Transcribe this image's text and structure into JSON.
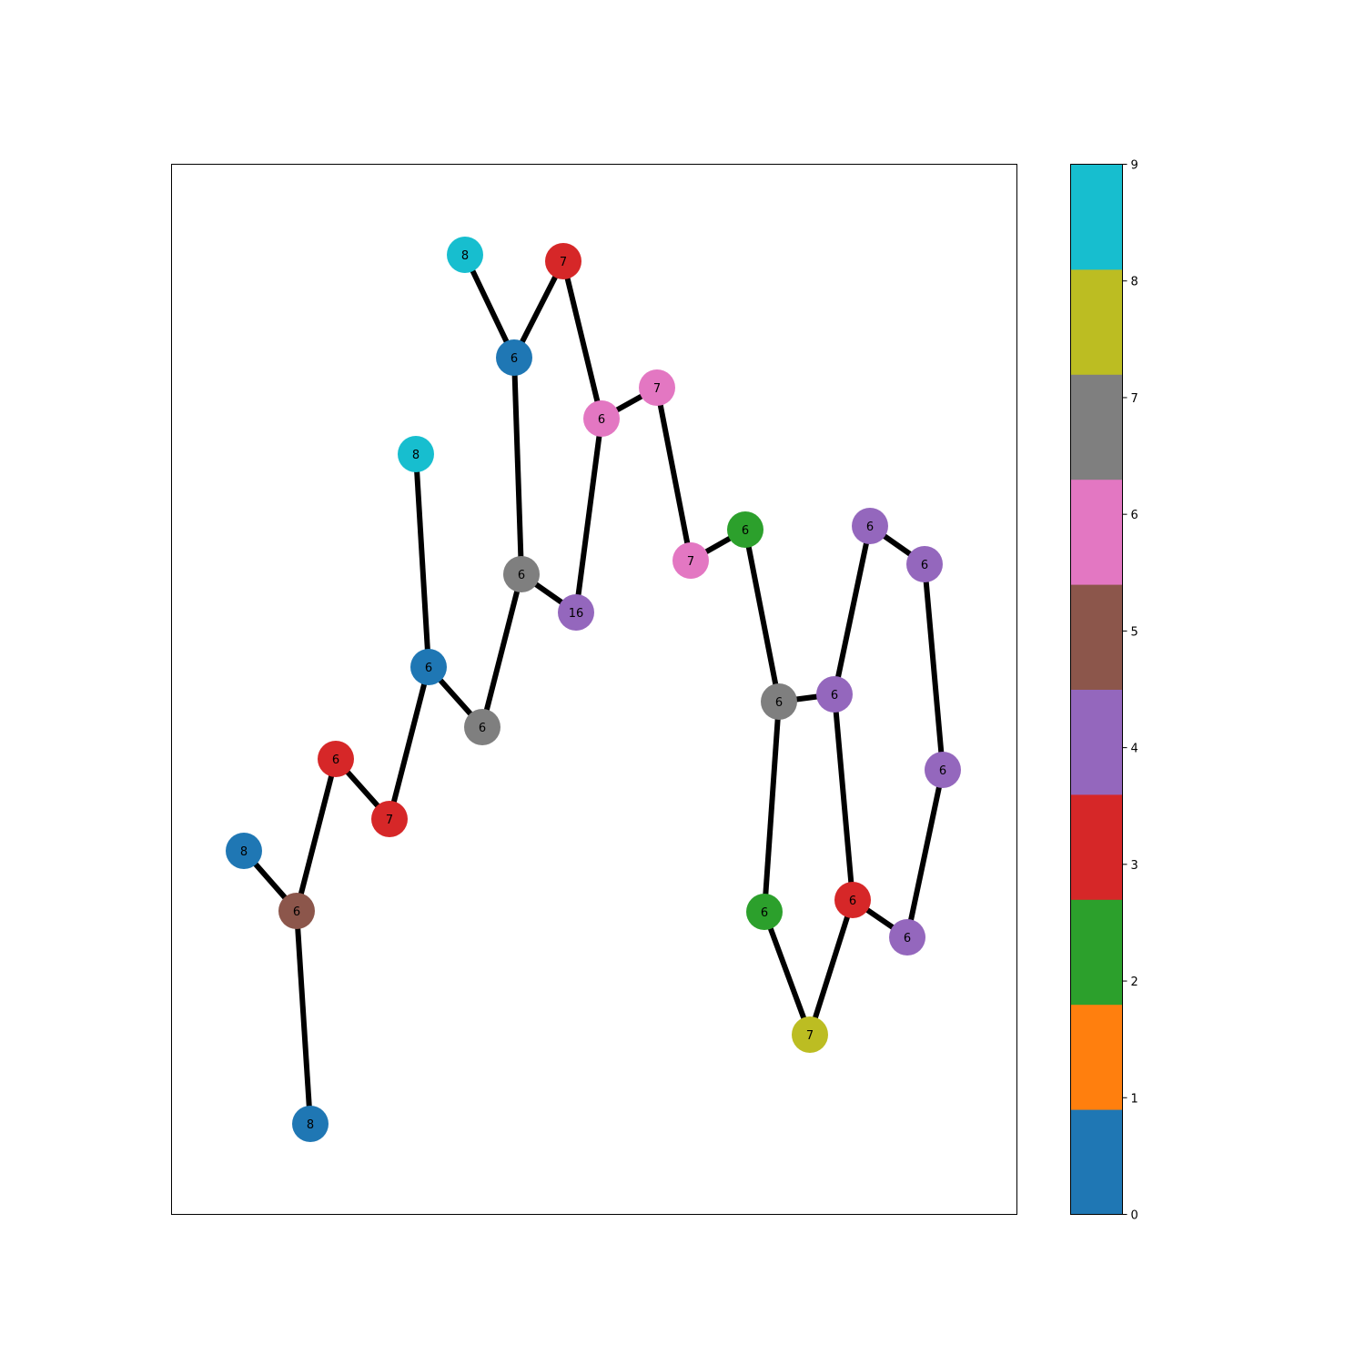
{
  "graph": {
    "nodes": [
      {
        "id": "n0",
        "label": "8",
        "color_index": 9
      },
      {
        "id": "n1",
        "label": "7",
        "color_index": 3
      },
      {
        "id": "n2",
        "label": "6",
        "color_index": 0
      },
      {
        "id": "n3",
        "label": "6",
        "color_index": 6
      },
      {
        "id": "n4",
        "label": "7",
        "color_index": 6
      },
      {
        "id": "n5",
        "label": "8",
        "color_index": 9
      },
      {
        "id": "n6",
        "label": "7",
        "color_index": 6
      },
      {
        "id": "n7",
        "label": "6",
        "color_index": 2
      },
      {
        "id": "n8",
        "label": "6",
        "color_index": 4
      },
      {
        "id": "n9",
        "label": "6",
        "color_index": 4
      },
      {
        "id": "n10",
        "label": "6",
        "color_index": 7
      },
      {
        "id": "n11",
        "label": "16",
        "color_index": 4
      },
      {
        "id": "n12",
        "label": "6",
        "color_index": 0
      },
      {
        "id": "n13",
        "label": "6",
        "color_index": 7
      },
      {
        "id": "n14",
        "label": "6",
        "color_index": 7
      },
      {
        "id": "n15",
        "label": "6",
        "color_index": 4
      },
      {
        "id": "n16",
        "label": "6",
        "color_index": 3
      },
      {
        "id": "n17",
        "label": "6",
        "color_index": 4
      },
      {
        "id": "n18",
        "label": "7",
        "color_index": 3
      },
      {
        "id": "n19",
        "label": "8",
        "color_index": 0
      },
      {
        "id": "n20",
        "label": "6",
        "color_index": 5
      },
      {
        "id": "n21",
        "label": "6",
        "color_index": 2
      },
      {
        "id": "n22",
        "label": "6",
        "color_index": 3
      },
      {
        "id": "n23",
        "label": "6",
        "color_index": 4
      },
      {
        "id": "n24",
        "label": "7",
        "color_index": 8
      },
      {
        "id": "n25",
        "label": "8",
        "color_index": 0
      }
    ],
    "edges": [
      [
        "n0",
        "n2"
      ],
      [
        "n1",
        "n2"
      ],
      [
        "n1",
        "n3"
      ],
      [
        "n3",
        "n4"
      ],
      [
        "n3",
        "n11"
      ],
      [
        "n4",
        "n6"
      ],
      [
        "n6",
        "n7"
      ],
      [
        "n7",
        "n14"
      ],
      [
        "n2",
        "n10"
      ],
      [
        "n10",
        "n11"
      ],
      [
        "n10",
        "n13"
      ],
      [
        "n13",
        "n12"
      ],
      [
        "n5",
        "n12"
      ],
      [
        "n12",
        "n18"
      ],
      [
        "n18",
        "n16"
      ],
      [
        "n16",
        "n20"
      ],
      [
        "n19",
        "n20"
      ],
      [
        "n20",
        "n25"
      ],
      [
        "n14",
        "n15"
      ],
      [
        "n14",
        "n21"
      ],
      [
        "n15",
        "n8"
      ],
      [
        "n8",
        "n9"
      ],
      [
        "n9",
        "n17"
      ],
      [
        "n17",
        "n23"
      ],
      [
        "n23",
        "n22"
      ],
      [
        "n22",
        "n15"
      ],
      [
        "n22",
        "n24"
      ],
      [
        "n21",
        "n24"
      ]
    ]
  },
  "colorbar": {
    "min": 0,
    "max": 9,
    "ticks": [
      "0",
      "1",
      "2",
      "3",
      "4",
      "5",
      "6",
      "7",
      "8",
      "9"
    ],
    "palette": [
      "#1f77b4",
      "#ff7f0e",
      "#2ca02c",
      "#d62728",
      "#9467bd",
      "#8c564b",
      "#e377c2",
      "#7f7f7f",
      "#bcbd22",
      "#17becf"
    ]
  },
  "style": {
    "edge_color": "#000000",
    "frame_color": "#000000"
  }
}
